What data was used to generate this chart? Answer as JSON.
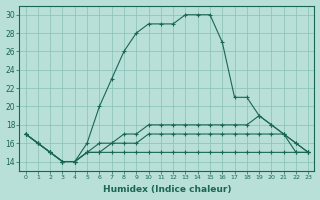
{
  "xlabel": "Humidex (Indice chaleur)",
  "bg_color": "#b8e0d8",
  "grid_color": "#88bfb5",
  "line_color": "#1a6655",
  "xlim": [
    -0.5,
    23.5
  ],
  "ylim": [
    13.0,
    31.0
  ],
  "xticks": [
    0,
    1,
    2,
    3,
    4,
    5,
    6,
    7,
    8,
    9,
    10,
    11,
    12,
    13,
    14,
    15,
    16,
    17,
    18,
    19,
    20,
    21,
    22,
    23
  ],
  "yticks": [
    14,
    16,
    18,
    20,
    22,
    24,
    26,
    28,
    30
  ],
  "series": [
    [
      17,
      16,
      15,
      14,
      14,
      16,
      20,
      23,
      26,
      28,
      29,
      29,
      29,
      30,
      30,
      30,
      27,
      21,
      21,
      19,
      18,
      17,
      15,
      15
    ],
    [
      17,
      16,
      15,
      14,
      14,
      15,
      16,
      16,
      17,
      17,
      18,
      18,
      18,
      18,
      18,
      18,
      18,
      18,
      18,
      19,
      18,
      17,
      16,
      15
    ],
    [
      17,
      16,
      15,
      14,
      14,
      15,
      15,
      16,
      16,
      16,
      17,
      17,
      17,
      17,
      17,
      17,
      17,
      17,
      17,
      17,
      17,
      17,
      16,
      15
    ],
    [
      17,
      16,
      15,
      14,
      14,
      15,
      15,
      15,
      15,
      15,
      15,
      15,
      15,
      15,
      15,
      15,
      15,
      15,
      15,
      15,
      15,
      15,
      15,
      15
    ]
  ]
}
